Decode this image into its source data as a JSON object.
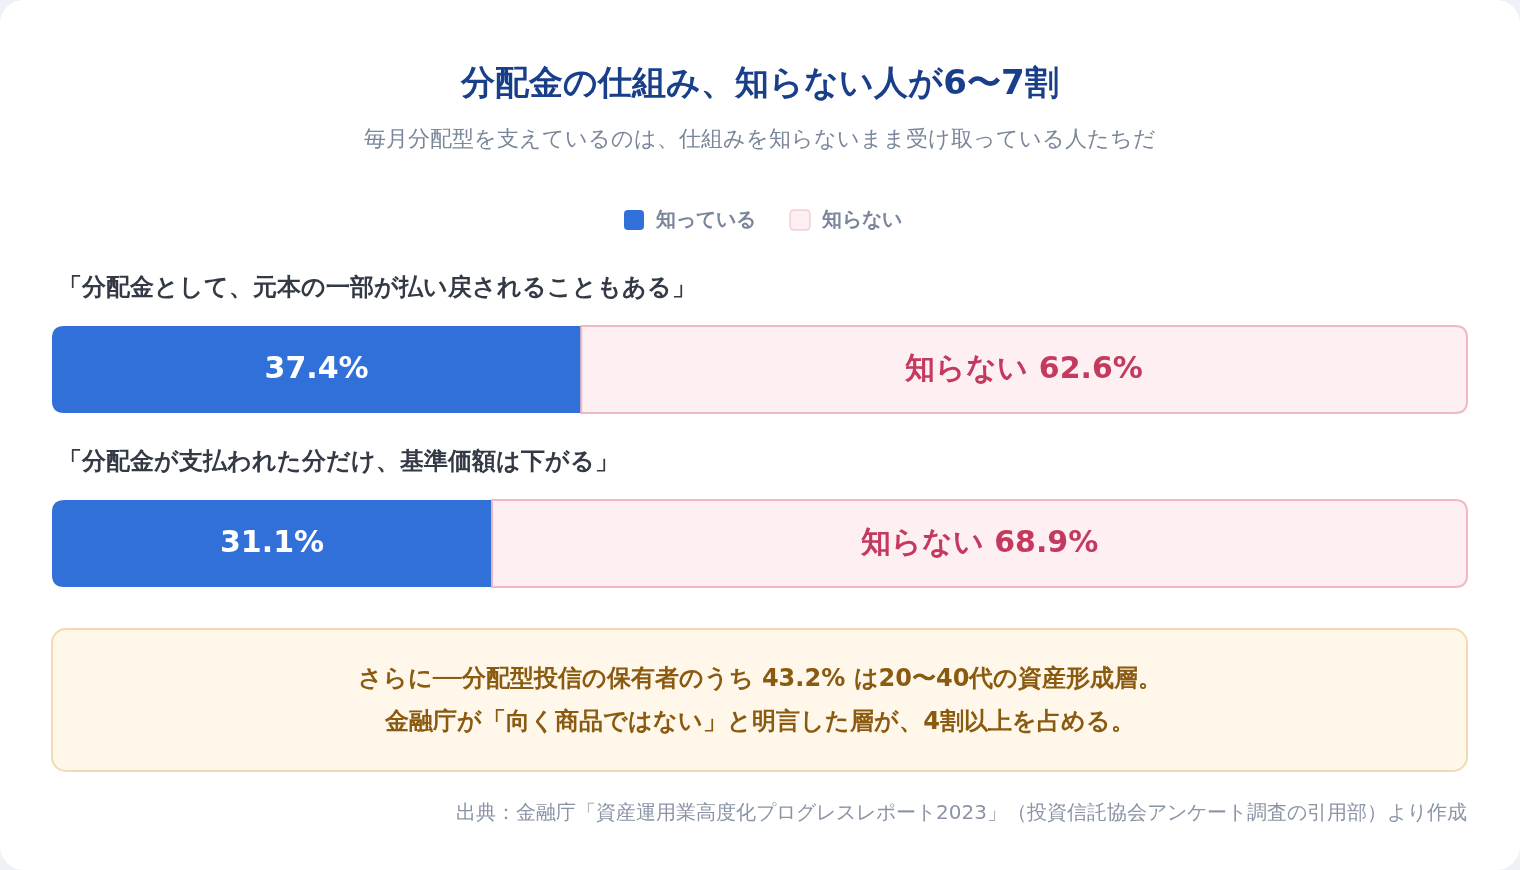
{
  "chart_data": {
    "type": "bar",
    "orientation": "horizontal",
    "stacked": true,
    "title": "分配金の仕組み、知らない人が6〜7割",
    "subtitle": "毎月分配型を支えているのは、仕組みを知らないまま受け取っている人たちだ",
    "categories": [
      "「分配金として、元本の一部が払い戻されることもある」",
      "「分配金が支払われた分だけ、基準価額は下がる」"
    ],
    "xlim": [
      0,
      100
    ],
    "legend": "top",
    "series": [
      {
        "name": "知っている",
        "color": "#3070d8",
        "values": [
          37.4,
          31.1
        ],
        "value_labels": [
          "37.4%",
          "31.1%"
        ]
      },
      {
        "name": "知らない",
        "color": "#fdeff2",
        "values": [
          62.6,
          68.9
        ],
        "value_labels": [
          "知らない 62.6%",
          "知らない 68.9%"
        ]
      }
    ],
    "annotations": [
      "さらに──分配型投信の保有者のうち 43.2% は20〜40代の資産形成層。",
      "金融庁が「向く商品ではない」と明言した層が、4割以上を占める。",
      "出典：金融庁「資産運用業高度化プログレスレポート2023」（投資信託協会アンケート調査の引用部）より作成"
    ]
  }
}
